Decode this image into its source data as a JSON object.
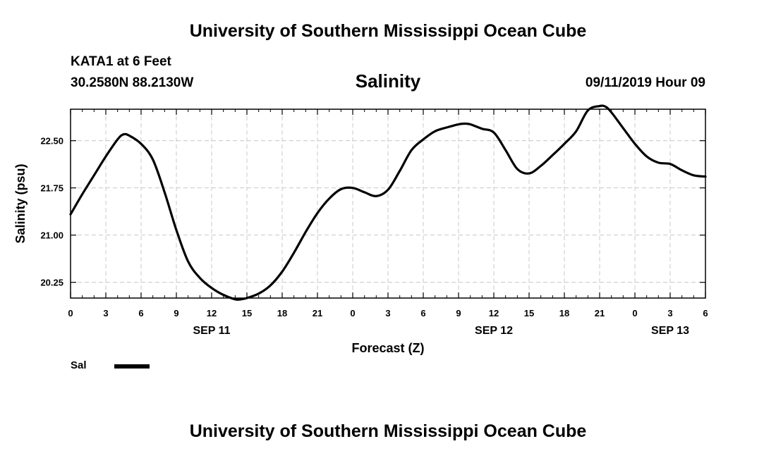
{
  "header": {
    "title": "University of Southern Mississippi Ocean Cube",
    "station": "KATA1 at 6 Feet",
    "coordinates": "30.2580N 88.2130W",
    "chart_title": "Salinity",
    "datetime": "09/11/2019 Hour 09"
  },
  "footer": {
    "title": "University of Southern Mississippi Ocean Cube"
  },
  "legend": {
    "label": "Sal",
    "color": "#000000"
  },
  "colors": {
    "line": "#000000",
    "grid": "#c8c8c8",
    "frame": "#000000"
  },
  "chart_data": {
    "type": "line",
    "title": "Salinity",
    "xlabel": "Forecast (Z)",
    "ylabel": "Salinity (psu)",
    "xlim": [
      0,
      54
    ],
    "ylim": [
      20.0,
      23.0
    ],
    "x_tick_labels": [
      "0",
      "3",
      "6",
      "9",
      "12",
      "15",
      "18",
      "21",
      "0",
      "3",
      "6",
      "9",
      "12",
      "15",
      "18",
      "21",
      "0",
      "3",
      "6"
    ],
    "x_tick_values": [
      0,
      3,
      6,
      9,
      12,
      15,
      18,
      21,
      24,
      27,
      30,
      33,
      36,
      39,
      42,
      45,
      48,
      51,
      54
    ],
    "y_ticks": [
      {
        "value": 20.25,
        "label": "20.25"
      },
      {
        "value": 21.0,
        "label": "21.00"
      },
      {
        "value": 21.75,
        "label": "21.75"
      },
      {
        "value": 22.5,
        "label": "22.50"
      }
    ],
    "date_labels": [
      {
        "x": 12,
        "label": "SEP 11"
      },
      {
        "x": 36,
        "label": "SEP 12"
      },
      {
        "x": 51,
        "label": "SEP 13"
      }
    ],
    "grid": true,
    "series": [
      {
        "name": "Sal",
        "x": [
          0,
          1,
          2,
          3,
          4,
          4.5,
          5,
          6,
          7,
          8,
          9,
          10,
          11,
          12,
          13,
          14,
          14.5,
          15,
          16,
          17,
          18,
          19,
          20,
          21,
          22,
          23,
          24,
          25,
          26,
          27,
          28,
          29,
          30,
          31,
          32,
          33,
          33.5,
          34,
          35,
          36,
          37,
          38,
          39,
          40,
          41,
          42,
          43,
          44,
          45,
          45.5,
          46,
          47,
          48,
          49,
          50,
          51,
          52,
          53,
          54
        ],
        "values": [
          21.33,
          21.65,
          21.95,
          22.25,
          22.52,
          22.6,
          22.58,
          22.45,
          22.2,
          21.68,
          21.08,
          20.58,
          20.32,
          20.16,
          20.05,
          19.98,
          19.98,
          20.0,
          20.07,
          20.2,
          20.42,
          20.72,
          21.05,
          21.35,
          21.58,
          21.73,
          21.75,
          21.68,
          21.62,
          21.72,
          22.02,
          22.35,
          22.52,
          22.65,
          22.71,
          22.76,
          22.77,
          22.76,
          22.69,
          22.63,
          22.35,
          22.05,
          21.98,
          22.1,
          22.27,
          22.45,
          22.65,
          22.98,
          23.05,
          23.04,
          22.95,
          22.7,
          22.45,
          22.25,
          22.15,
          22.13,
          22.03,
          21.95,
          21.93
        ]
      }
    ]
  }
}
